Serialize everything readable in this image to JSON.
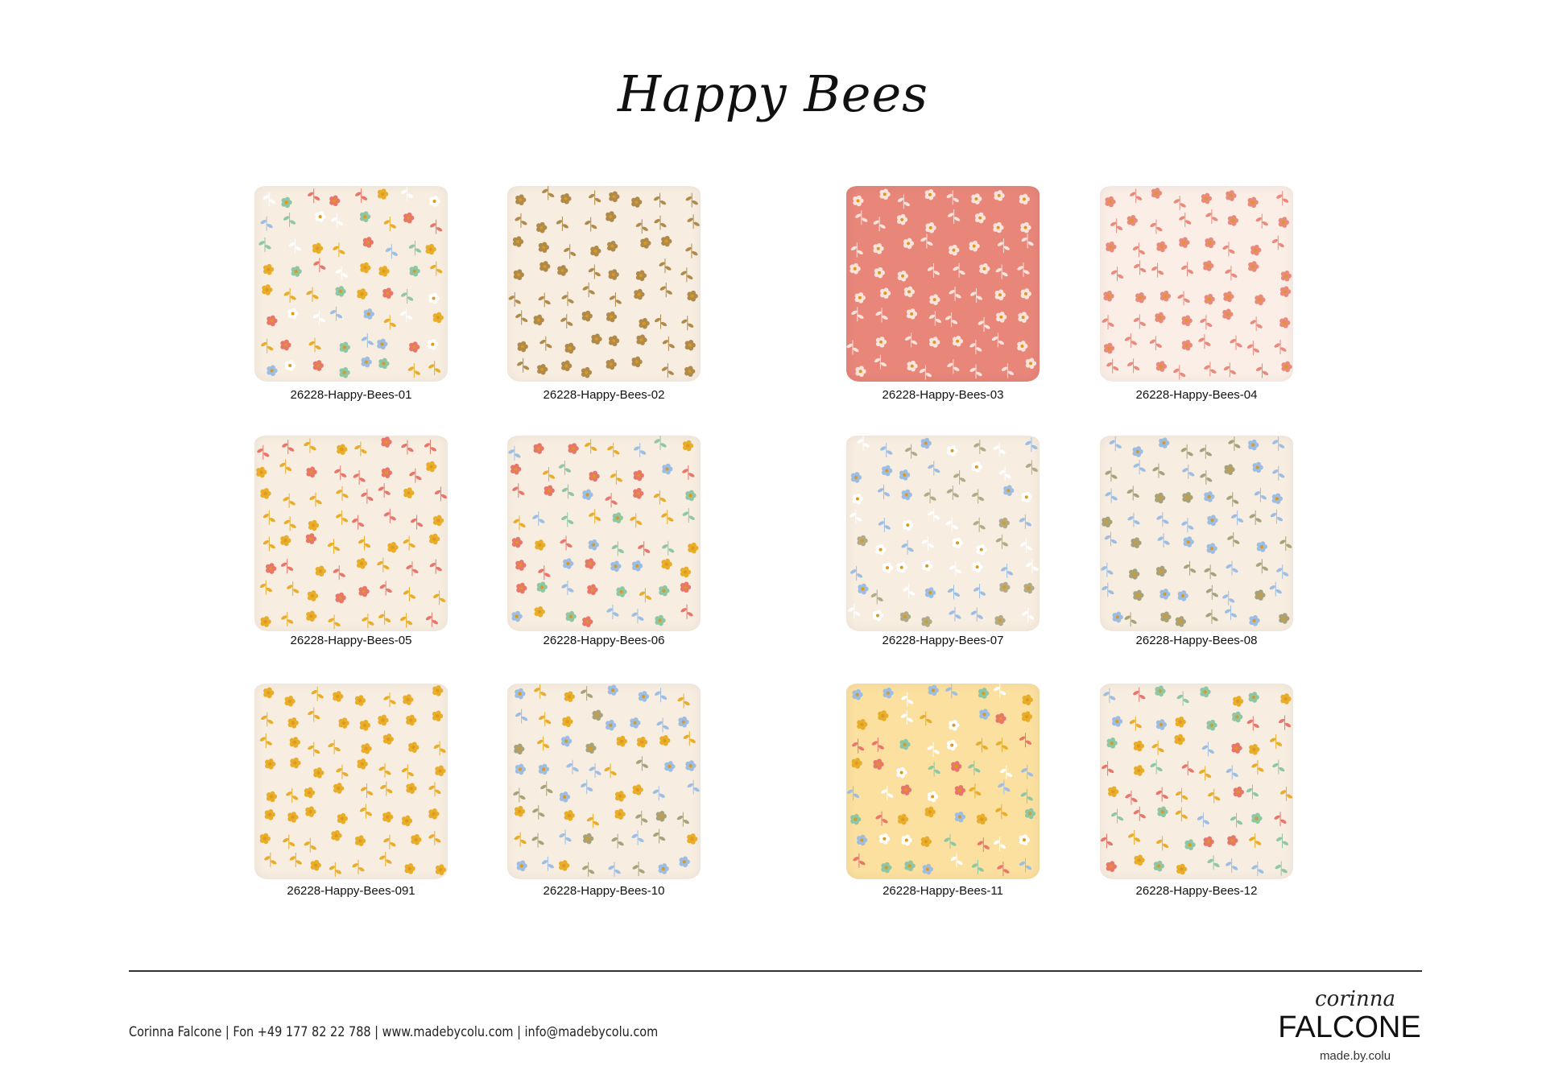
{
  "title": "Happy Bees",
  "pillows": [
    {
      "label": "26228-Happy-Bees-01",
      "bg": "#f7ede0",
      "colors": [
        "#e9ad2a",
        "#8fc6a4",
        "#9dbde3",
        "#e8766b",
        "#ffffff"
      ]
    },
    {
      "label": "26228-Happy-Bees-02",
      "bg": "#f7ede0",
      "colors": [
        "#b08a4a"
      ]
    },
    {
      "label": "26228-Happy-Bees-03",
      "bg": "#e8867a",
      "colors": [
        "#fbe3dc"
      ]
    },
    {
      "label": "26228-Happy-Bees-04",
      "bg": "#fbeee6",
      "colors": [
        "#e98a7c"
      ]
    },
    {
      "label": "26228-Happy-Bees-05",
      "bg": "#f7ede0",
      "colors": [
        "#e9ad2a",
        "#e8766b"
      ]
    },
    {
      "label": "26228-Happy-Bees-06",
      "bg": "#f7ede0",
      "colors": [
        "#e9ad2a",
        "#8fc6a4",
        "#9dbde3",
        "#e8766b"
      ]
    },
    {
      "label": "26228-Happy-Bees-07",
      "bg": "#f7ede0",
      "colors": [
        "#9dbde3",
        "#b2ab88",
        "#ffffff"
      ]
    },
    {
      "label": "26228-Happy-Bees-08",
      "bg": "#f7ede0",
      "colors": [
        "#9dbde3",
        "#a8a27a"
      ]
    },
    {
      "label": "26228-Happy-Bees-091",
      "bg": "#f7ede0",
      "colors": [
        "#e9ad2a"
      ]
    },
    {
      "label": "26228-Happy-Bees-10",
      "bg": "#f7ede0",
      "colors": [
        "#e9ad2a",
        "#9dbde3",
        "#a8a27a"
      ]
    },
    {
      "label": "26228-Happy-Bees-11",
      "bg": "#fbe0a0",
      "colors": [
        "#e9ad2a",
        "#8fc6a4",
        "#9dbde3",
        "#e8766b",
        "#ffffff"
      ]
    },
    {
      "label": "26228-Happy-Bees-12",
      "bg": "#f7ede0",
      "colors": [
        "#e9ad2a",
        "#8fc6a4",
        "#9dbde3",
        "#e8766b"
      ]
    }
  ],
  "footer": {
    "contact": "Corinna Falcone | Fon +49 177 82 22 788 | www.madebycolu.com | info@madebycolu.com",
    "logo_script": "corinna",
    "logo_main": "FALCONE",
    "logo_sub": "made.by.colu"
  }
}
